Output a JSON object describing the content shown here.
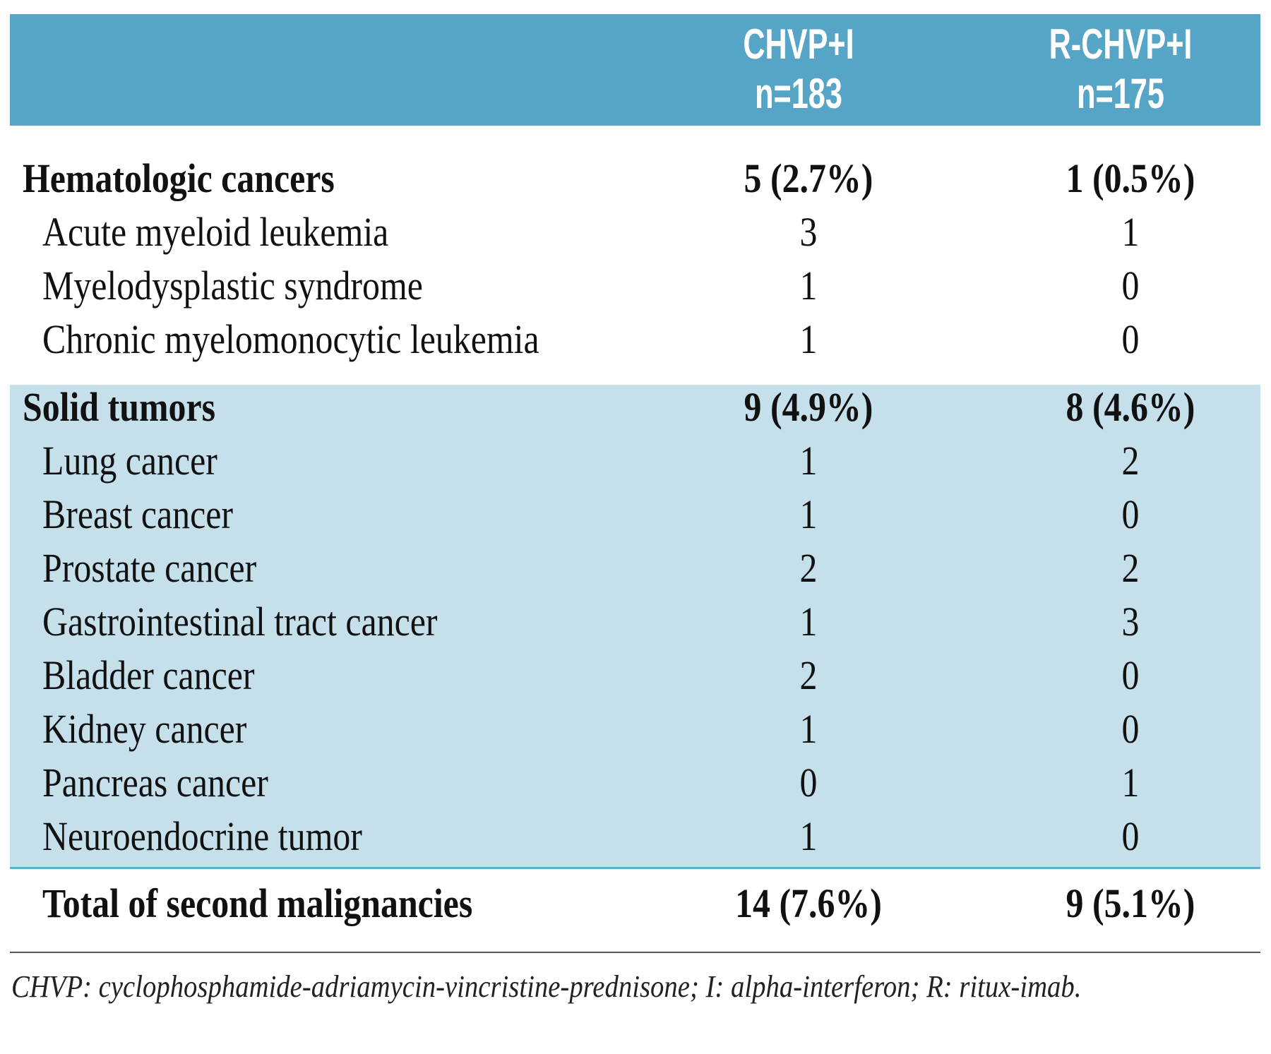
{
  "header": {
    "columns": [
      {
        "line1": "CHVP+I",
        "line2": "n=183"
      },
      {
        "line1": "R-CHVP+I",
        "line2": "n=175"
      }
    ]
  },
  "rows": [
    {
      "label": "Hematologic cancers",
      "v1": "5 (2.7%)",
      "v2": "1 (0.5%)",
      "type": "group"
    },
    {
      "label": "Acute myeloid leukemia",
      "v1": "3",
      "v2": "1"
    },
    {
      "label": "Myelodysplastic syndrome",
      "v1": "1",
      "v2": "0"
    },
    {
      "label": "Chronic myelomonocytic leukemia",
      "v1": "1",
      "v2": "0"
    },
    {
      "label": "Solid tumors",
      "v1": "9 (4.9%)",
      "v2": "8 (4.6%)",
      "type": "group"
    },
    {
      "label": "Lung cancer",
      "v1": "1",
      "v2": "2"
    },
    {
      "label": "Breast cancer",
      "v1": "1",
      "v2": "0"
    },
    {
      "label": "Prostate cancer",
      "v1": "2",
      "v2": "2"
    },
    {
      "label": "Gastrointestinal tract cancer",
      "v1": "1",
      "v2": "3"
    },
    {
      "label": "Bladder cancer",
      "v1": "2",
      "v2": "0"
    },
    {
      "label": "Kidney cancer",
      "v1": "1",
      "v2": "0"
    },
    {
      "label": "Pancreas cancer",
      "v1": "0",
      "v2": "1"
    },
    {
      "label": "Neuroendocrine tumor",
      "v1": "1",
      "v2": "0"
    }
  ],
  "total": {
    "label": "Total of second malignancies",
    "v1": "14 (7.6%)",
    "v2": "9 (5.1%)"
  },
  "footnote": "CHVP: cyclophosphamide-adriamycin-vincristine-prednisone; I: alpha-interferon; R: ritux-imab.",
  "colors": {
    "header": "#57a5c6",
    "shaded": "#c5dfeb",
    "rule": "#5ab0d0"
  }
}
